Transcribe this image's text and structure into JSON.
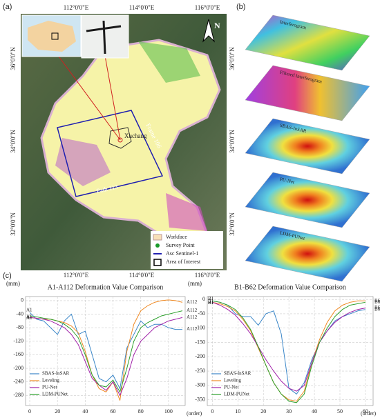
{
  "panel_a": {
    "label": "(a)",
    "lon_ticks": [
      "112°0'0\"E",
      "114°0'0\"E",
      "116°0'0\"E"
    ],
    "lat_ticks": [
      "36°0'0\"N",
      "34°0'0\"N",
      "32°0'0\"N"
    ],
    "north": "N",
    "places": [
      "Xuchang",
      "Frame 106",
      "Path 113"
    ],
    "legend": [
      "Workface",
      "Survey Point",
      "Asc Sentinel-1",
      "Area of Interest"
    ]
  },
  "panel_b": {
    "label": "(b)",
    "layers": [
      "Interferogram",
      "Filtered Interferogram",
      "SBAS-InSAR",
      "PU-Net",
      "LDM-PUNet"
    ]
  },
  "panel_c": {
    "label": "(c)"
  },
  "chart_data": [
    {
      "type": "line",
      "title": "A1-A112 Deformation Value Comparison",
      "y_label": "(mm)",
      "x_label": "(order)",
      "start_label": "A1",
      "end_label": "A112",
      "x": [
        0,
        5,
        10,
        15,
        20,
        25,
        30,
        35,
        40,
        45,
        50,
        55,
        60,
        65,
        70,
        75,
        80,
        85,
        90,
        95,
        100,
        105,
        110
      ],
      "xlim": [
        -3,
        112
      ],
      "xticks": [
        0,
        20,
        40,
        60,
        80,
        100
      ],
      "ylim": [
        -310,
        12
      ],
      "yticks": [
        0,
        -40,
        -80,
        -120,
        -160,
        -200,
        -240,
        -280
      ],
      "grid": true,
      "legend": "lower left",
      "series": [
        {
          "name": "SBAS-InSAR",
          "color": "#3a86c8",
          "values": [
            -35,
            -55,
            -60,
            -80,
            -100,
            -60,
            -40,
            -100,
            -90,
            -160,
            -230,
            -240,
            -220,
            -260,
            -140,
            -100,
            -60,
            -80,
            -70,
            -70,
            -80,
            -85,
            -85
          ]
        },
        {
          "name": "Leveling",
          "color": "#f08a24",
          "values": [
            -50,
            -52,
            -55,
            -55,
            -60,
            -65,
            -75,
            -95,
            -150,
            -220,
            -260,
            -270,
            -240,
            -295,
            -150,
            -70,
            -30,
            -15,
            -5,
            0,
            2,
            0,
            -5
          ]
        },
        {
          "name": "PU-Net",
          "color": "#a020a8",
          "values": [
            -50,
            -52,
            -55,
            -60,
            -70,
            -80,
            -100,
            -130,
            -180,
            -230,
            -250,
            -265,
            -240,
            -280,
            -230,
            -160,
            -120,
            -100,
            -80,
            -70,
            -60,
            -55,
            -50
          ]
        },
        {
          "name": "LDM-PUNet",
          "color": "#2ca02c",
          "values": [
            -45,
            -48,
            -52,
            -55,
            -60,
            -70,
            -85,
            -110,
            -160,
            -220,
            -250,
            -255,
            -235,
            -270,
            -200,
            -120,
            -80,
            -65,
            -55,
            -45,
            -40,
            -35,
            -30
          ]
        }
      ]
    },
    {
      "type": "line",
      "title": "B1-B62 Deformation Value Comparison",
      "y_label": "(mm)",
      "x_label": "(order)",
      "start_label": "B1",
      "end_label": "B62",
      "x": [
        0,
        3,
        6,
        9,
        12,
        15,
        18,
        21,
        24,
        27,
        30,
        33,
        36,
        39,
        42,
        45,
        48,
        51,
        54,
        57,
        60
      ],
      "xlim": [
        -2,
        63
      ],
      "xticks": [
        0,
        10,
        20,
        30,
        40,
        50,
        60
      ],
      "ylim": [
        -370,
        10
      ],
      "yticks": [
        0,
        -50,
        -100,
        -150,
        -200,
        -250,
        -300,
        -350
      ],
      "grid": true,
      "legend": "lower left",
      "series": [
        {
          "name": "SBAS-InSAR",
          "color": "#3a86c8",
          "values": [
            -5,
            -10,
            -20,
            -50,
            -60,
            -60,
            -90,
            -50,
            -40,
            -120,
            -310,
            -330,
            -290,
            -210,
            -150,
            -110,
            -75,
            -60,
            -50,
            -40,
            -35
          ]
        },
        {
          "name": "Leveling",
          "color": "#f08a24",
          "values": [
            -10,
            -15,
            -25,
            -40,
            -70,
            -110,
            -170,
            -230,
            -290,
            -330,
            -350,
            -355,
            -320,
            -220,
            -140,
            -80,
            -40,
            -20,
            -10,
            -5,
            -5
          ]
        },
        {
          "name": "PU-Net",
          "color": "#a020a8",
          "values": [
            -10,
            -20,
            -35,
            -55,
            -85,
            -120,
            -165,
            -210,
            -250,
            -285,
            -310,
            -320,
            -300,
            -220,
            -150,
            -110,
            -80,
            -60,
            -45,
            -35,
            -30
          ]
        },
        {
          "name": "LDM-PUNet",
          "color": "#2ca02c",
          "values": [
            -5,
            -10,
            -20,
            -35,
            -65,
            -105,
            -165,
            -230,
            -290,
            -330,
            -355,
            -360,
            -330,
            -230,
            -150,
            -100,
            -60,
            -35,
            -20,
            -15,
            -10
          ]
        }
      ]
    }
  ]
}
